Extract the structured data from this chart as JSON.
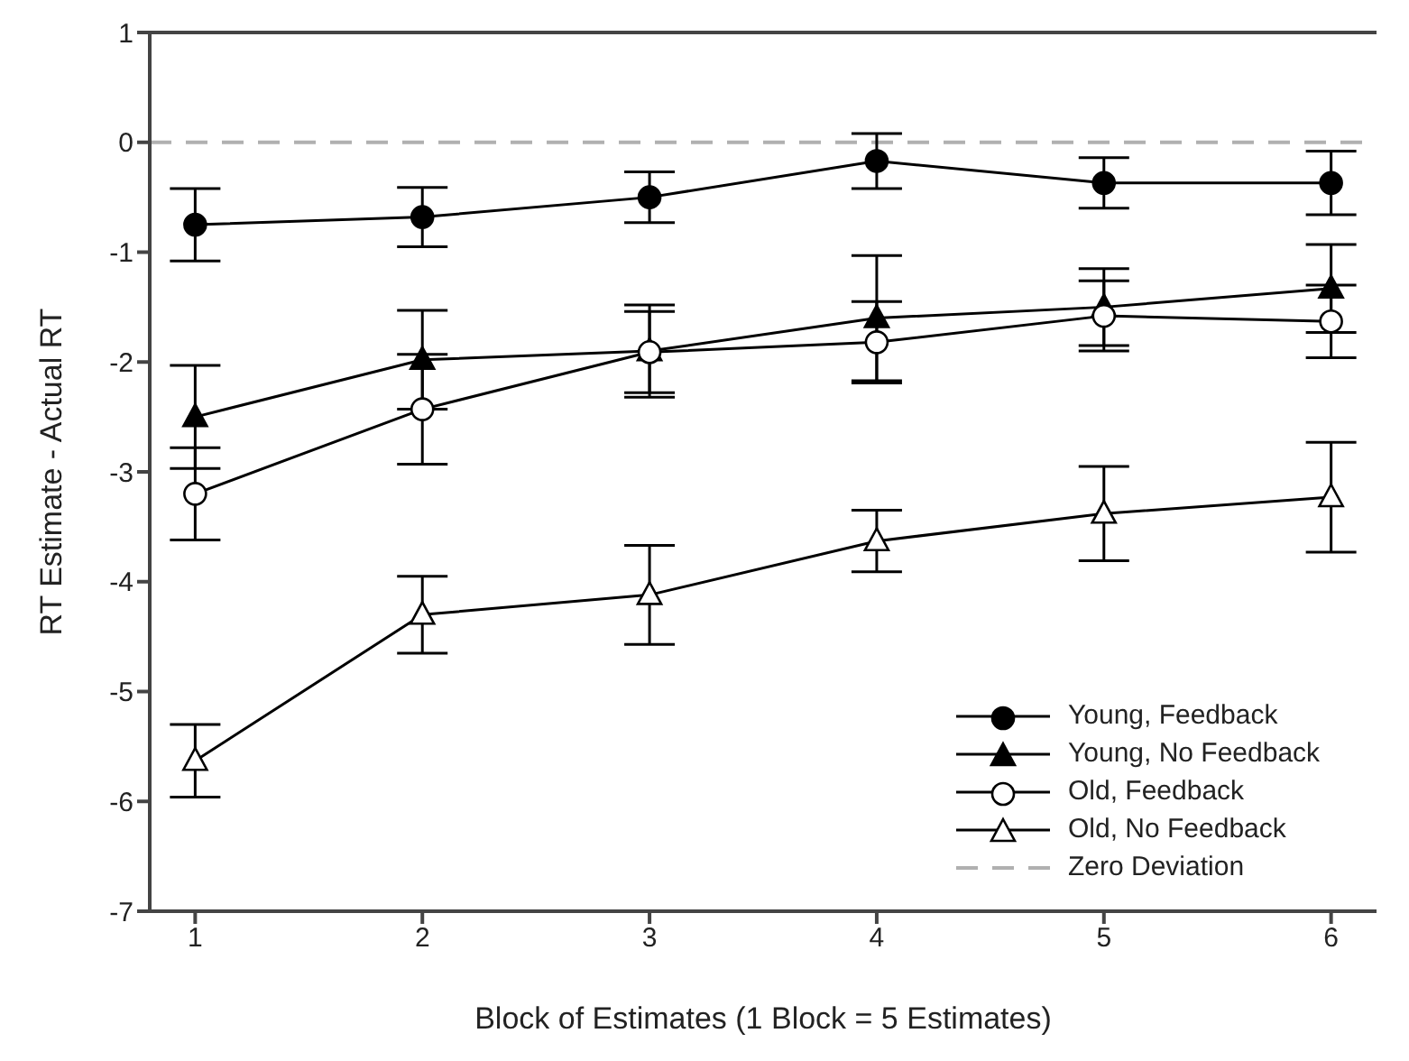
{
  "chart_data": {
    "type": "line",
    "xlabel": "Block of Estimates (1 Block = 5 Estimates)",
    "ylabel": "RT Estimate - Actual RT",
    "x": [
      1,
      2,
      3,
      4,
      5,
      6
    ],
    "xlim": [
      0.8,
      6.2
    ],
    "xticks": [
      1,
      2,
      3,
      4,
      5,
      6
    ],
    "ylim": [
      -7,
      1
    ],
    "yticks": [
      -7,
      -6,
      -5,
      -4,
      -3,
      -2,
      -1,
      0,
      1
    ],
    "grid": false,
    "legend": "bottom right",
    "line_style": "solid",
    "series": [
      {
        "name": "Young, Feedback",
        "color": "#000000",
        "marker": "circle",
        "values": [
          -0.75,
          -0.68,
          -0.5,
          -0.17,
          -0.37,
          -0.37
        ],
        "errors": [
          0.33,
          0.27,
          0.23,
          0.25,
          0.23,
          0.29
        ]
      },
      {
        "name": "Young, No Feedback",
        "color": "#000000",
        "marker": "triangle",
        "values": [
          -2.5,
          -1.98,
          -1.9,
          -1.6,
          -1.5,
          -1.33
        ],
        "errors": [
          0.47,
          0.45,
          0.42,
          0.57,
          0.35,
          0.4
        ]
      },
      {
        "name": "Old, Feedback",
        "color": "#ffffff",
        "marker": "circle",
        "values": [
          -3.2,
          -2.43,
          -1.91,
          -1.82,
          -1.58,
          -1.63
        ],
        "errors": [
          0.42,
          0.5,
          0.37,
          0.37,
          0.32,
          0.33
        ]
      },
      {
        "name": "Old, No Feedback",
        "color": "#ffffff",
        "marker": "triangle",
        "values": [
          -5.63,
          -4.3,
          -4.12,
          -3.63,
          -3.38,
          -3.23
        ],
        "errors": [
          0.33,
          0.35,
          0.45,
          0.28,
          0.43,
          0.5
        ]
      }
    ],
    "ref_lines": [
      {
        "axis": "y",
        "value": 0,
        "label": "Zero Deviation",
        "color": "#b0b0b0",
        "line_style": "dashed"
      }
    ]
  }
}
